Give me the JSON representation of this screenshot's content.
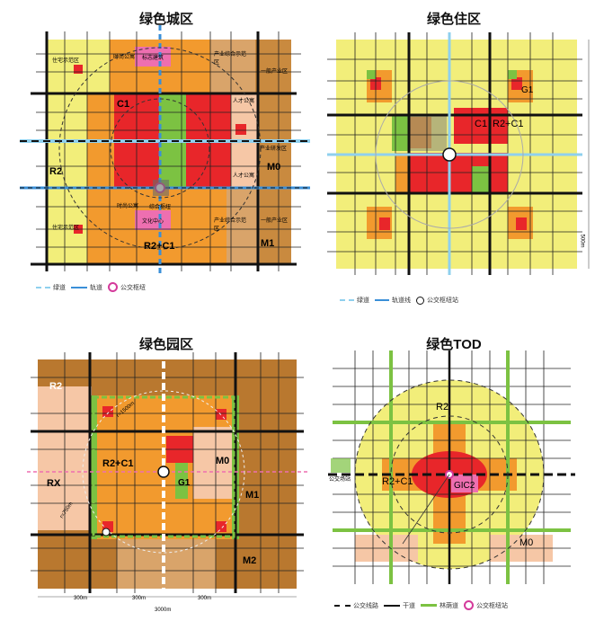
{
  "panels": {
    "city": {
      "title": "绿色城区",
      "zones": {
        "c1": "C1",
        "r2": "R2",
        "m0": "M0",
        "m1": "M1",
        "r2c1": "R2+C1"
      },
      "labels": {
        "residential_nw": "住宅示范区",
        "residential_sw": "住宅示范区",
        "apt_n": "时尚公寓",
        "landmark": "标志建筑",
        "industry_ne": "产业综合示范区",
        "general_ind_ne": "一般产业区",
        "talent_1": "人才公寓",
        "talent_2": "人才公寓",
        "rnd": "产业研发区",
        "apt_s": "时尚公寓",
        "culture": "文化中心",
        "industry_se": "产业综合示范区",
        "general_ind_se": "一般产业区",
        "transit_hub": "综合枢纽"
      },
      "legend": {
        "greenway": "绿道",
        "rail": "轨道",
        "hub": "公交枢纽"
      }
    },
    "residential": {
      "title": "绿色住区",
      "zones": {
        "c1": "C1",
        "r2c1": "R2+C1",
        "g1": "G1"
      },
      "dims": {
        "right": "500m"
      },
      "legend": {
        "greenway": "绿道",
        "rail": "轨道线",
        "hub": "公交枢纽站"
      }
    },
    "park": {
      "title": "绿色园区",
      "zones": {
        "r2": "R2",
        "r2c1": "R2+C1",
        "m0": "M0",
        "g1": "G1",
        "rx": "RX",
        "m1": "M1",
        "m2": "M2"
      },
      "dims": {
        "d1": "300m",
        "d2": "300m",
        "d3": "300m",
        "bottom": "3000m",
        "diag1": "r=1500m",
        "diag2": "r=750m"
      }
    },
    "tod": {
      "title": "绿色TOD",
      "zones": {
        "r2": "R2",
        "r2c1": "R2+C1",
        "gic": "GIC2",
        "m0": "M0"
      },
      "labels": {
        "station": "公交场站"
      },
      "legend": {
        "bus": "公交线路",
        "main": "干道",
        "forest": "林荫道",
        "stop": "公交枢纽站"
      }
    }
  },
  "colors": {
    "yellow": "#f2ee7a",
    "orange": "#f29a2e",
    "red": "#e8262a",
    "pink": "#ee6fb0",
    "green": "#7cc242",
    "peach": "#f6c7a6",
    "brown": "#c98a3f",
    "tan": "#d9a46a",
    "darkbrown": "#b9782f",
    "blue": "#3a8fd8"
  }
}
